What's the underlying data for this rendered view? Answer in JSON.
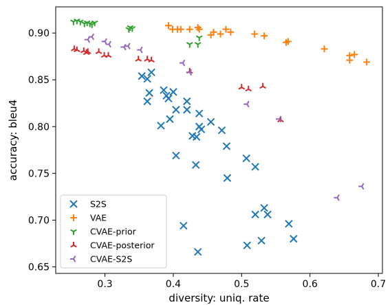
{
  "chart_data": {
    "type": "scatter",
    "title": "",
    "xlabel": "diversity: uniq. rate",
    "ylabel": "accuracy: bleu4",
    "xlim": [
      0.228,
      0.706
    ],
    "ylim": [
      0.643,
      0.928
    ],
    "xticks": [
      0.3,
      0.4,
      0.5,
      0.6,
      0.7
    ],
    "xtick_labels": [
      "0.3",
      "0.4",
      "0.5",
      "0.6",
      "0.7"
    ],
    "yticks": [
      0.65,
      0.7,
      0.75,
      0.8,
      0.85,
      0.9
    ],
    "ytick_labels": [
      "0.65",
      "0.70",
      "0.75",
      "0.80",
      "0.85",
      "0.90"
    ],
    "grid": false,
    "legend_position": "lower-left",
    "series": [
      {
        "name": "S2S",
        "marker": "x",
        "color": "#1f77b4",
        "points": [
          [
            0.354,
            0.854
          ],
          [
            0.362,
            0.851
          ],
          [
            0.368,
            0.858
          ],
          [
            0.365,
            0.836
          ],
          [
            0.362,
            0.827
          ],
          [
            0.386,
            0.839
          ],
          [
            0.39,
            0.833
          ],
          [
            0.393,
            0.83
          ],
          [
            0.4,
            0.837
          ],
          [
            0.382,
            0.801
          ],
          [
            0.395,
            0.808
          ],
          [
            0.404,
            0.818
          ],
          [
            0.42,
            0.827
          ],
          [
            0.42,
            0.818
          ],
          [
            0.438,
            0.814
          ],
          [
            0.438,
            0.8
          ],
          [
            0.441,
            0.797
          ],
          [
            0.428,
            0.79
          ],
          [
            0.434,
            0.789
          ],
          [
            0.455,
            0.805
          ],
          [
            0.471,
            0.796
          ],
          [
            0.478,
            0.779
          ],
          [
            0.404,
            0.769
          ],
          [
            0.433,
            0.759
          ],
          [
            0.479,
            0.745
          ],
          [
            0.507,
            0.766
          ],
          [
            0.52,
            0.757
          ],
          [
            0.533,
            0.713
          ],
          [
            0.52,
            0.706
          ],
          [
            0.538,
            0.706
          ],
          [
            0.569,
            0.696
          ],
          [
            0.576,
            0.68
          ],
          [
            0.415,
            0.694
          ],
          [
            0.529,
            0.678
          ],
          [
            0.508,
            0.673
          ],
          [
            0.436,
            0.666
          ]
        ]
      },
      {
        "name": "VAE",
        "marker": "+",
        "color": "#ff7f0e",
        "points": [
          [
            0.393,
            0.908
          ],
          [
            0.399,
            0.904
          ],
          [
            0.406,
            0.904
          ],
          [
            0.411,
            0.904
          ],
          [
            0.424,
            0.904
          ],
          [
            0.436,
            0.906
          ],
          [
            0.438,
            0.904
          ],
          [
            0.455,
            0.898
          ],
          [
            0.459,
            0.901
          ],
          [
            0.469,
            0.899
          ],
          [
            0.477,
            0.904
          ],
          [
            0.484,
            0.901
          ],
          [
            0.519,
            0.899
          ],
          [
            0.533,
            0.897
          ],
          [
            0.565,
            0.89
          ],
          [
            0.568,
            0.891
          ],
          [
            0.621,
            0.883
          ],
          [
            0.658,
            0.876
          ],
          [
            0.658,
            0.871
          ],
          [
            0.665,
            0.877
          ],
          [
            0.683,
            0.869
          ]
        ]
      },
      {
        "name": "CVAE-prior",
        "marker": "tri_down",
        "color": "#2ca02c",
        "points": [
          [
            0.254,
            0.912
          ],
          [
            0.259,
            0.913
          ],
          [
            0.264,
            0.912
          ],
          [
            0.27,
            0.91
          ],
          [
            0.274,
            0.911
          ],
          [
            0.278,
            0.91
          ],
          [
            0.281,
            0.909
          ],
          [
            0.285,
            0.911
          ],
          [
            0.335,
            0.904
          ],
          [
            0.337,
            0.906
          ],
          [
            0.34,
            0.905
          ],
          [
            0.424,
            0.888
          ],
          [
            0.436,
            0.888
          ],
          [
            0.438,
            0.895
          ]
        ]
      },
      {
        "name": "CVAE-posterior",
        "marker": "tri_up",
        "color": "#d62728",
        "points": [
          [
            0.255,
            0.883
          ],
          [
            0.259,
            0.882
          ],
          [
            0.269,
            0.881
          ],
          [
            0.273,
            0.879
          ],
          [
            0.275,
            0.88
          ],
          [
            0.291,
            0.88
          ],
          [
            0.299,
            0.876
          ],
          [
            0.305,
            0.876
          ],
          [
            0.349,
            0.872
          ],
          [
            0.362,
            0.872
          ],
          [
            0.368,
            0.871
          ],
          [
            0.424,
            0.859
          ],
          [
            0.5,
            0.842
          ],
          [
            0.51,
            0.84
          ],
          [
            0.531,
            0.843
          ],
          [
            0.557,
            0.807
          ]
        ]
      },
      {
        "name": "CVAE-S2S",
        "marker": "tri_left",
        "color": "#9467bd",
        "points": [
          [
            0.275,
            0.893
          ],
          [
            0.281,
            0.896
          ],
          [
            0.3,
            0.891
          ],
          [
            0.306,
            0.888
          ],
          [
            0.328,
            0.885
          ],
          [
            0.334,
            0.886
          ],
          [
            0.352,
            0.882
          ],
          [
            0.414,
            0.868
          ],
          [
            0.424,
            0.858
          ],
          [
            0.508,
            0.824
          ],
          [
            0.555,
            0.808
          ],
          [
            0.64,
            0.724
          ],
          [
            0.676,
            0.736
          ]
        ]
      }
    ]
  }
}
